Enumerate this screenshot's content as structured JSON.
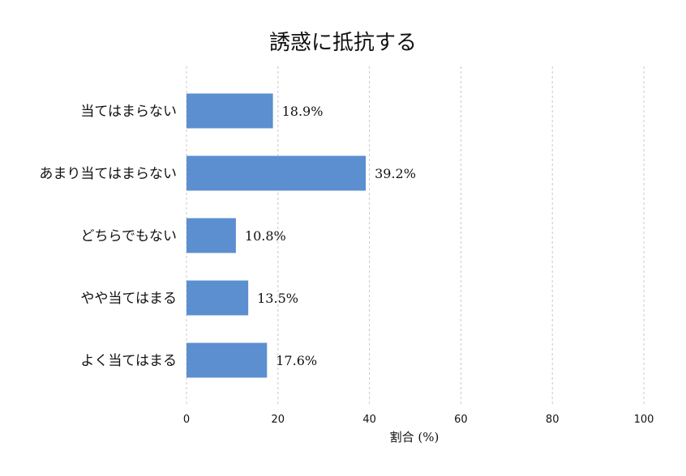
{
  "chart_data": {
    "type": "bar",
    "orientation": "horizontal",
    "title": "誘惑に抵抗する",
    "xlabel": "割合 (%)",
    "ylabel": "",
    "categories": [
      "当てはまらない",
      "あまり当てはまらない",
      "どちらでもない",
      "やや当てはまる",
      "よく当てはまる"
    ],
    "values": [
      18.9,
      39.2,
      10.8,
      13.5,
      17.6
    ],
    "value_labels": [
      "18.9%",
      "39.2%",
      "10.8%",
      "13.5%",
      "17.6%"
    ],
    "xlim": [
      0,
      100
    ],
    "xticks": [
      0,
      20,
      40,
      60,
      80,
      100
    ],
    "grid": "vertical-dashed",
    "color": "#5b8fd0"
  }
}
